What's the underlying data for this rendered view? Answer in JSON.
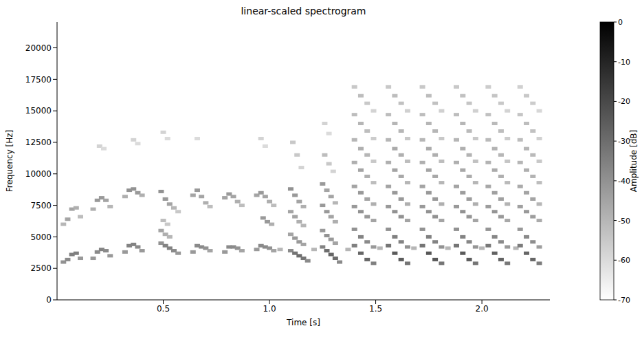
{
  "chart_data": {
    "type": "heatmap",
    "title": "linear-scaled spectrogram",
    "x_label": "Time [s]",
    "y_label": "Frequency [Hz]",
    "xlim": [
      0,
      2.32
    ],
    "ylim": [
      0,
      22050
    ],
    "xticks": [
      0.5,
      {
        "value": 1,
        "label": "1.0"
      },
      1.5,
      {
        "value": 2,
        "label": "2.0"
      }
    ],
    "yticks": [
      0,
      2500,
      5000,
      7500,
      10000,
      12500,
      15000,
      17500,
      20000
    ],
    "grid": false,
    "colorbar": {
      "label": "Amplitude [dB]",
      "range": [
        -70,
        0
      ],
      "ticks": [
        -70,
        -60,
        -50,
        -40,
        -30,
        -20,
        -10,
        0
      ]
    },
    "cells": [
      [
        0.03,
        3000,
        -40
      ],
      [
        0.05,
        3200,
        -38
      ],
      [
        0.07,
        3600,
        -35
      ],
      [
        0.09,
        3700,
        -35
      ],
      [
        0.11,
        3300,
        -42
      ],
      [
        0.03,
        6000,
        -50
      ],
      [
        0.05,
        6400,
        -45
      ],
      [
        0.07,
        7200,
        -45
      ],
      [
        0.09,
        7300,
        -48
      ],
      [
        0.11,
        6600,
        -52
      ],
      [
        0.17,
        3300,
        -42
      ],
      [
        0.19,
        3800,
        -38
      ],
      [
        0.21,
        4000,
        -36
      ],
      [
        0.23,
        3900,
        -38
      ],
      [
        0.25,
        3500,
        -42
      ],
      [
        0.17,
        7200,
        -48
      ],
      [
        0.19,
        7900,
        -42
      ],
      [
        0.21,
        8100,
        -42
      ],
      [
        0.23,
        7900,
        -45
      ],
      [
        0.25,
        7400,
        -50
      ],
      [
        0.2,
        12200,
        -58
      ],
      [
        0.22,
        12000,
        -60
      ],
      [
        0.32,
        3800,
        -42
      ],
      [
        0.34,
        4300,
        -36
      ],
      [
        0.36,
        4400,
        -36
      ],
      [
        0.38,
        4200,
        -38
      ],
      [
        0.4,
        3900,
        -42
      ],
      [
        0.32,
        8200,
        -48
      ],
      [
        0.34,
        8700,
        -40
      ],
      [
        0.36,
        8800,
        -40
      ],
      [
        0.38,
        8500,
        -42
      ],
      [
        0.4,
        8300,
        -48
      ],
      [
        0.36,
        12700,
        -58
      ],
      [
        0.38,
        12400,
        -60
      ],
      [
        0.49,
        4500,
        -40
      ],
      [
        0.51,
        4300,
        -36
      ],
      [
        0.53,
        4100,
        -36
      ],
      [
        0.55,
        3900,
        -38
      ],
      [
        0.57,
        3700,
        -42
      ],
      [
        0.49,
        5500,
        -45
      ],
      [
        0.51,
        5200,
        -48
      ],
      [
        0.53,
        5000,
        -50
      ],
      [
        0.49,
        8600,
        -40
      ],
      [
        0.51,
        8000,
        -42
      ],
      [
        0.53,
        7600,
        -45
      ],
      [
        0.55,
        7300,
        -50
      ],
      [
        0.57,
        7000,
        -55
      ],
      [
        0.5,
        6300,
        -52
      ],
      [
        0.52,
        6000,
        -55
      ],
      [
        0.5,
        13300,
        -58
      ],
      [
        0.52,
        12800,
        -60
      ],
      [
        0.64,
        3800,
        -42
      ],
      [
        0.66,
        4300,
        -38
      ],
      [
        0.68,
        4200,
        -38
      ],
      [
        0.7,
        4100,
        -40
      ],
      [
        0.72,
        3900,
        -45
      ],
      [
        0.64,
        8300,
        -45
      ],
      [
        0.66,
        8700,
        -42
      ],
      [
        0.68,
        8200,
        -45
      ],
      [
        0.7,
        7700,
        -48
      ],
      [
        0.72,
        7400,
        -52
      ],
      [
        0.66,
        12800,
        -60
      ],
      [
        0.79,
        3800,
        -42
      ],
      [
        0.81,
        4200,
        -38
      ],
      [
        0.83,
        4200,
        -38
      ],
      [
        0.85,
        4100,
        -40
      ],
      [
        0.87,
        3900,
        -45
      ],
      [
        0.79,
        8100,
        -45
      ],
      [
        0.81,
        8400,
        -42
      ],
      [
        0.83,
        8200,
        -45
      ],
      [
        0.85,
        7800,
        -48
      ],
      [
        0.87,
        7500,
        -52
      ],
      [
        0.94,
        4000,
        -42
      ],
      [
        0.96,
        4300,
        -38
      ],
      [
        0.98,
        4200,
        -38
      ],
      [
        1.0,
        4100,
        -40
      ],
      [
        1.02,
        3900,
        -45
      ],
      [
        0.97,
        6500,
        -42
      ],
      [
        0.99,
        6200,
        -42
      ],
      [
        1.01,
        6000,
        -48
      ],
      [
        0.94,
        8300,
        -45
      ],
      [
        0.96,
        8500,
        -42
      ],
      [
        0.98,
        8200,
        -45
      ],
      [
        1.0,
        7800,
        -48
      ],
      [
        1.02,
        7500,
        -52
      ],
      [
        0.96,
        12800,
        -58
      ],
      [
        0.98,
        12200,
        -60
      ],
      [
        1.1,
        3900,
        -38
      ],
      [
        1.12,
        3700,
        -32
      ],
      [
        1.14,
        3500,
        -30
      ],
      [
        1.16,
        3300,
        -32
      ],
      [
        1.18,
        3100,
        -38
      ],
      [
        1.1,
        5200,
        -45
      ],
      [
        1.12,
        4900,
        -42
      ],
      [
        1.14,
        4600,
        -42
      ],
      [
        1.16,
        4400,
        -45
      ],
      [
        1.1,
        7000,
        -45
      ],
      [
        1.12,
        6600,
        -45
      ],
      [
        1.14,
        6200,
        -48
      ],
      [
        1.16,
        5900,
        -50
      ],
      [
        1.1,
        8800,
        -40
      ],
      [
        1.12,
        8300,
        -42
      ],
      [
        1.14,
        7800,
        -45
      ],
      [
        1.16,
        7400,
        -48
      ],
      [
        1.11,
        12500,
        -55
      ],
      [
        1.13,
        11500,
        -55
      ],
      [
        1.15,
        10500,
        -58
      ],
      [
        1.25,
        4200,
        -36
      ],
      [
        1.27,
        3900,
        -30
      ],
      [
        1.29,
        3600,
        -28
      ],
      [
        1.31,
        3300,
        -30
      ],
      [
        1.33,
        3000,
        -38
      ],
      [
        1.25,
        5500,
        -42
      ],
      [
        1.27,
        5100,
        -40
      ],
      [
        1.29,
        4800,
        -42
      ],
      [
        1.31,
        4500,
        -45
      ],
      [
        1.25,
        7500,
        -42
      ],
      [
        1.27,
        7000,
        -42
      ],
      [
        1.29,
        6600,
        -45
      ],
      [
        1.31,
        6200,
        -48
      ],
      [
        1.25,
        9200,
        -42
      ],
      [
        1.27,
        8700,
        -45
      ],
      [
        1.29,
        8200,
        -45
      ],
      [
        1.31,
        7700,
        -50
      ],
      [
        1.26,
        11500,
        -52
      ],
      [
        1.28,
        10800,
        -55
      ],
      [
        1.3,
        10200,
        -58
      ],
      [
        1.26,
        14000,
        -58
      ],
      [
        1.28,
        13200,
        -60
      ],
      [
        1.05,
        4000,
        -50
      ],
      [
        1.21,
        4000,
        -50
      ],
      [
        1.37,
        4000,
        -50
      ],
      [
        1.52,
        4100,
        -50
      ],
      [
        1.68,
        4100,
        -50
      ],
      [
        1.84,
        4100,
        -50
      ],
      [
        2.0,
        4100,
        -50
      ],
      [
        2.16,
        4100,
        -50
      ],
      [
        1.4,
        4300,
        -35
      ],
      [
        1.43,
        3700,
        -28
      ],
      [
        1.46,
        3200,
        -28
      ],
      [
        1.49,
        2900,
        -35
      ],
      [
        1.4,
        5600,
        -40
      ],
      [
        1.43,
        5000,
        -36
      ],
      [
        1.46,
        4600,
        -38
      ],
      [
        1.49,
        4200,
        -42
      ],
      [
        1.4,
        7400,
        -42
      ],
      [
        1.43,
        7000,
        -40
      ],
      [
        1.46,
        6600,
        -42
      ],
      [
        1.49,
        6300,
        -45
      ],
      [
        1.4,
        9000,
        -45
      ],
      [
        1.43,
        8500,
        -42
      ],
      [
        1.46,
        8000,
        -45
      ],
      [
        1.49,
        7600,
        -48
      ],
      [
        1.4,
        10900,
        -48
      ],
      [
        1.43,
        10300,
        -45
      ],
      [
        1.46,
        9800,
        -48
      ],
      [
        1.49,
        9300,
        -52
      ],
      [
        1.4,
        12700,
        -50
      ],
      [
        1.43,
        12000,
        -48
      ],
      [
        1.46,
        11500,
        -50
      ],
      [
        1.49,
        11000,
        -55
      ],
      [
        1.4,
        14700,
        -52
      ],
      [
        1.43,
        14000,
        -50
      ],
      [
        1.46,
        13400,
        -52
      ],
      [
        1.49,
        12800,
        -56
      ],
      [
        1.4,
        16900,
        -55
      ],
      [
        1.43,
        16200,
        -52
      ],
      [
        1.46,
        15600,
        -55
      ],
      [
        1.49,
        15000,
        -58
      ],
      [
        1.56,
        4300,
        -32
      ],
      [
        1.59,
        3700,
        -25
      ],
      [
        1.62,
        3200,
        -25
      ],
      [
        1.65,
        2900,
        -32
      ],
      [
        1.56,
        5600,
        -40
      ],
      [
        1.59,
        5000,
        -35
      ],
      [
        1.62,
        4600,
        -36
      ],
      [
        1.65,
        4200,
        -40
      ],
      [
        1.56,
        7400,
        -42
      ],
      [
        1.59,
        7000,
        -40
      ],
      [
        1.62,
        6600,
        -40
      ],
      [
        1.65,
        6300,
        -45
      ],
      [
        1.56,
        9000,
        -45
      ],
      [
        1.59,
        8500,
        -42
      ],
      [
        1.62,
        8000,
        -42
      ],
      [
        1.65,
        7600,
        -48
      ],
      [
        1.56,
        10900,
        -48
      ],
      [
        1.59,
        10300,
        -45
      ],
      [
        1.62,
        9800,
        -46
      ],
      [
        1.65,
        9300,
        -50
      ],
      [
        1.56,
        12700,
        -50
      ],
      [
        1.59,
        12000,
        -47
      ],
      [
        1.62,
        11500,
        -48
      ],
      [
        1.65,
        11000,
        -52
      ],
      [
        1.56,
        14700,
        -52
      ],
      [
        1.59,
        14000,
        -50
      ],
      [
        1.62,
        13400,
        -50
      ],
      [
        1.65,
        12800,
        -55
      ],
      [
        1.56,
        16900,
        -55
      ],
      [
        1.59,
        16200,
        -52
      ],
      [
        1.62,
        15600,
        -53
      ],
      [
        1.65,
        15000,
        -57
      ],
      [
        1.72,
        4300,
        -32
      ],
      [
        1.75,
        3700,
        -24
      ],
      [
        1.78,
        3200,
        -24
      ],
      [
        1.81,
        2900,
        -32
      ],
      [
        1.72,
        5600,
        -40
      ],
      [
        1.75,
        5000,
        -35
      ],
      [
        1.78,
        4600,
        -36
      ],
      [
        1.81,
        4200,
        -40
      ],
      [
        1.72,
        7400,
        -42
      ],
      [
        1.75,
        7000,
        -40
      ],
      [
        1.78,
        6600,
        -40
      ],
      [
        1.81,
        6300,
        -45
      ],
      [
        1.72,
        9000,
        -45
      ],
      [
        1.75,
        8500,
        -42
      ],
      [
        1.78,
        8000,
        -42
      ],
      [
        1.81,
        7600,
        -48
      ],
      [
        1.72,
        10900,
        -48
      ],
      [
        1.75,
        10300,
        -45
      ],
      [
        1.78,
        9800,
        -46
      ],
      [
        1.81,
        9300,
        -50
      ],
      [
        1.72,
        12700,
        -50
      ],
      [
        1.75,
        12000,
        -47
      ],
      [
        1.78,
        11500,
        -48
      ],
      [
        1.81,
        11000,
        -52
      ],
      [
        1.72,
        14700,
        -52
      ],
      [
        1.75,
        14000,
        -50
      ],
      [
        1.78,
        13400,
        -50
      ],
      [
        1.81,
        12800,
        -55
      ],
      [
        1.72,
        16900,
        -55
      ],
      [
        1.75,
        16200,
        -52
      ],
      [
        1.78,
        15600,
        -53
      ],
      [
        1.81,
        15000,
        -57
      ],
      [
        1.88,
        4300,
        -32
      ],
      [
        1.91,
        3700,
        -25
      ],
      [
        1.94,
        3200,
        -25
      ],
      [
        1.97,
        2900,
        -32
      ],
      [
        1.88,
        5600,
        -40
      ],
      [
        1.91,
        5000,
        -36
      ],
      [
        1.94,
        4600,
        -37
      ],
      [
        1.97,
        4200,
        -41
      ],
      [
        1.88,
        7400,
        -42
      ],
      [
        1.91,
        7000,
        -40
      ],
      [
        1.94,
        6600,
        -41
      ],
      [
        1.97,
        6300,
        -45
      ],
      [
        1.88,
        9000,
        -45
      ],
      [
        1.91,
        8500,
        -43
      ],
      [
        1.94,
        8000,
        -43
      ],
      [
        1.97,
        7600,
        -48
      ],
      [
        1.88,
        10900,
        -48
      ],
      [
        1.91,
        10300,
        -46
      ],
      [
        1.94,
        9800,
        -47
      ],
      [
        1.97,
        9300,
        -50
      ],
      [
        1.88,
        12700,
        -50
      ],
      [
        1.91,
        12000,
        -48
      ],
      [
        1.94,
        11500,
        -49
      ],
      [
        1.97,
        11000,
        -53
      ],
      [
        1.88,
        14700,
        -52
      ],
      [
        1.91,
        14000,
        -50
      ],
      [
        1.94,
        13400,
        -51
      ],
      [
        1.97,
        12800,
        -55
      ],
      [
        1.88,
        16900,
        -55
      ],
      [
        1.91,
        16200,
        -53
      ],
      [
        1.94,
        15600,
        -54
      ],
      [
        1.97,
        15000,
        -57
      ],
      [
        2.03,
        4300,
        -33
      ],
      [
        2.06,
        3700,
        -27
      ],
      [
        2.09,
        3200,
        -27
      ],
      [
        2.12,
        2900,
        -33
      ],
      [
        2.03,
        5600,
        -41
      ],
      [
        2.06,
        5000,
        -37
      ],
      [
        2.09,
        4600,
        -38
      ],
      [
        2.12,
        4200,
        -42
      ],
      [
        2.03,
        7400,
        -43
      ],
      [
        2.06,
        7000,
        -41
      ],
      [
        2.09,
        6600,
        -42
      ],
      [
        2.12,
        6300,
        -46
      ],
      [
        2.03,
        9000,
        -46
      ],
      [
        2.06,
        8500,
        -44
      ],
      [
        2.09,
        8000,
        -44
      ],
      [
        2.12,
        7600,
        -49
      ],
      [
        2.03,
        10900,
        -49
      ],
      [
        2.06,
        10300,
        -47
      ],
      [
        2.09,
        9800,
        -48
      ],
      [
        2.12,
        9300,
        -51
      ],
      [
        2.03,
        12700,
        -51
      ],
      [
        2.06,
        12000,
        -49
      ],
      [
        2.09,
        11500,
        -50
      ],
      [
        2.12,
        11000,
        -54
      ],
      [
        2.03,
        14700,
        -53
      ],
      [
        2.06,
        14000,
        -51
      ],
      [
        2.09,
        13400,
        -52
      ],
      [
        2.12,
        12800,
        -56
      ],
      [
        2.03,
        16900,
        -56
      ],
      [
        2.06,
        16200,
        -54
      ],
      [
        2.09,
        15600,
        -55
      ],
      [
        2.12,
        15000,
        -58
      ],
      [
        2.18,
        4300,
        -34
      ],
      [
        2.21,
        3700,
        -28
      ],
      [
        2.24,
        3200,
        -28
      ],
      [
        2.27,
        2900,
        -34
      ],
      [
        2.18,
        5600,
        -42
      ],
      [
        2.21,
        5000,
        -38
      ],
      [
        2.24,
        4600,
        -39
      ],
      [
        2.27,
        4200,
        -43
      ],
      [
        2.18,
        7400,
        -44
      ],
      [
        2.21,
        7000,
        -42
      ],
      [
        2.24,
        6600,
        -43
      ],
      [
        2.27,
        6300,
        -47
      ],
      [
        2.18,
        9000,
        -47
      ],
      [
        2.21,
        8500,
        -45
      ],
      [
        2.24,
        8000,
        -45
      ],
      [
        2.27,
        7600,
        -50
      ],
      [
        2.18,
        10900,
        -50
      ],
      [
        2.21,
        10300,
        -48
      ],
      [
        2.24,
        9800,
        -49
      ],
      [
        2.27,
        9300,
        -52
      ],
      [
        2.18,
        12700,
        -52
      ],
      [
        2.21,
        12000,
        -50
      ],
      [
        2.24,
        11500,
        -51
      ],
      [
        2.27,
        11000,
        -55
      ],
      [
        2.18,
        14700,
        -54
      ],
      [
        2.21,
        14000,
        -52
      ],
      [
        2.24,
        13400,
        -53
      ],
      [
        2.27,
        12800,
        -57
      ],
      [
        2.18,
        16900,
        -57
      ],
      [
        2.21,
        16200,
        -55
      ],
      [
        2.24,
        15600,
        -56
      ],
      [
        2.27,
        15000,
        -59
      ]
    ]
  }
}
